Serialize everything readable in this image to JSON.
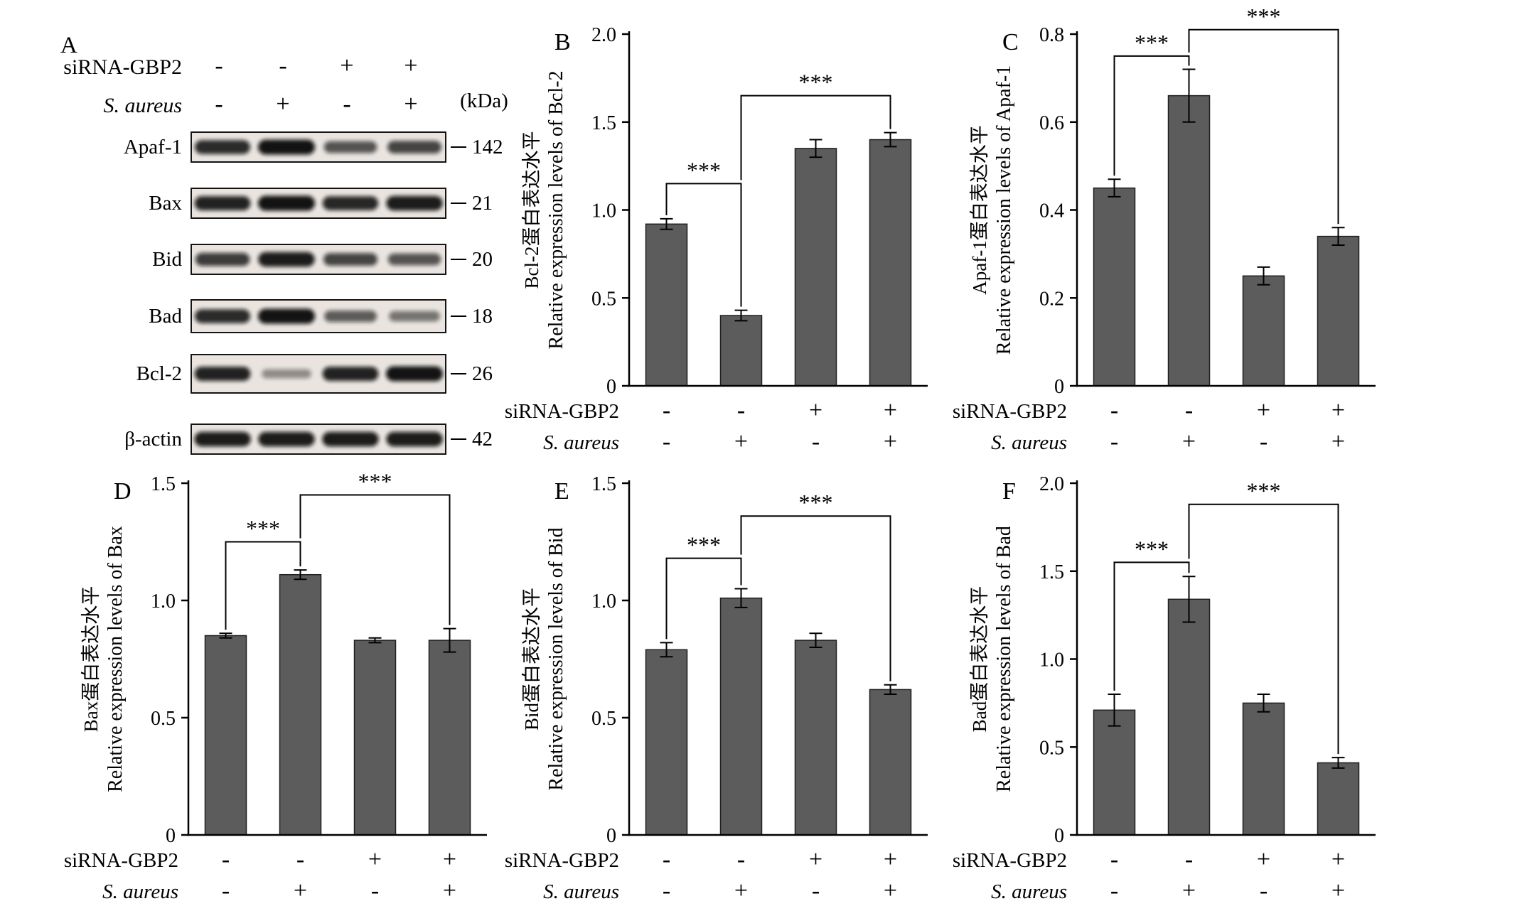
{
  "figure": {
    "background": "#ffffff"
  },
  "style": {
    "bar_color": "#5c5c5c",
    "bar_edge": "#1f1f1f",
    "axis_color": "#000000"
  },
  "panel_a": {
    "label": "A",
    "kda_header": "(kDa)",
    "condition_rows": [
      {
        "label": "siRNA-GBP2",
        "italic": false,
        "values": [
          "-",
          "-",
          "+",
          "+"
        ]
      },
      {
        "label": "S. aureus",
        "italic": true,
        "values": [
          "-",
          "+",
          "-",
          "+"
        ]
      }
    ],
    "blot_rows": [
      {
        "protein": "Apaf-1",
        "kda": "142",
        "bands": [
          0.85,
          1.0,
          0.6,
          0.7
        ]
      },
      {
        "protein": "Bax",
        "kda": "21",
        "bands": [
          0.9,
          1.0,
          0.88,
          0.95
        ]
      },
      {
        "protein": "Bid",
        "kda": "20",
        "bands": [
          0.75,
          0.95,
          0.7,
          0.6
        ]
      },
      {
        "protein": "Bad",
        "kda": "18",
        "bands": [
          0.85,
          1.0,
          0.55,
          0.4
        ]
      },
      {
        "protein": "Bcl-2",
        "kda": "26",
        "bands": [
          0.9,
          0.25,
          0.9,
          1.0
        ]
      },
      {
        "protein": "β-actin",
        "kda": "42",
        "bands": [
          0.95,
          0.95,
          0.95,
          0.95
        ]
      }
    ]
  },
  "axis_rows": [
    {
      "label": "siRNA-GBP2",
      "italic": false,
      "values": [
        "-",
        "-",
        "+",
        "+"
      ]
    },
    {
      "label": "S. aureus",
      "italic": true,
      "values": [
        "-",
        "+",
        "-",
        "+"
      ]
    }
  ],
  "chart_data": [
    {
      "type": "bar",
      "panel": "B",
      "ylabel_cn": "Bcl-2蛋白表达水平",
      "ylabel_en": "Relative expression levels of Bcl-2",
      "ylim": [
        0,
        2.0
      ],
      "yticks": [
        "0",
        "0.5",
        "1.0",
        "1.5",
        "2.0"
      ],
      "values": [
        0.92,
        0.4,
        1.35,
        1.4
      ],
      "errors": [
        0.03,
        0.03,
        0.05,
        0.04
      ],
      "significance": [
        {
          "from": 0,
          "to": 1,
          "label": "***",
          "height": 1.15
        },
        {
          "from": 1,
          "to": 3,
          "label": "***",
          "height": 1.65
        }
      ]
    },
    {
      "type": "bar",
      "panel": "C",
      "ylabel_cn": "Apaf-1蛋白表达水平",
      "ylabel_en": "Relative expression levels of Apaf-1",
      "ylim": [
        0,
        0.8
      ],
      "yticks": [
        "0",
        "0.2",
        "0.4",
        "0.6",
        "0.8"
      ],
      "values": [
        0.45,
        0.66,
        0.25,
        0.34
      ],
      "errors": [
        0.02,
        0.06,
        0.02,
        0.02
      ],
      "significance": [
        {
          "from": 0,
          "to": 1,
          "label": "***",
          "height": 0.75
        },
        {
          "from": 1,
          "to": 3,
          "label": "***",
          "height": 0.81
        }
      ]
    },
    {
      "type": "bar",
      "panel": "D",
      "ylabel_cn": "Bax蛋白表达水平",
      "ylabel_en": "Relative expression levels of Bax",
      "ylim": [
        0,
        1.5
      ],
      "yticks": [
        "0",
        "0.5",
        "1.0",
        "1.5"
      ],
      "values": [
        0.85,
        1.11,
        0.83,
        0.83
      ],
      "errors": [
        0.01,
        0.02,
        0.01,
        0.05
      ],
      "significance": [
        {
          "from": 0,
          "to": 1,
          "label": "***",
          "height": 1.25
        },
        {
          "from": 1,
          "to": 3,
          "label": "***",
          "height": 1.45
        }
      ]
    },
    {
      "type": "bar",
      "panel": "E",
      "ylabel_cn": "Bid蛋白表达水平",
      "ylabel_en": "Relative expression levels of Bid",
      "ylim": [
        0,
        1.5
      ],
      "yticks": [
        "0",
        "0.5",
        "1.0",
        "1.5"
      ],
      "values": [
        0.79,
        1.01,
        0.83,
        0.62
      ],
      "errors": [
        0.03,
        0.04,
        0.03,
        0.02
      ],
      "significance": [
        {
          "from": 0,
          "to": 1,
          "label": "***",
          "height": 1.18
        },
        {
          "from": 1,
          "to": 3,
          "label": "***",
          "height": 1.36
        }
      ]
    },
    {
      "type": "bar",
      "panel": "F",
      "ylabel_cn": "Bad蛋白表达水平",
      "ylabel_en": "Relative expression levels of Bad",
      "ylim": [
        0,
        2.0
      ],
      "yticks": [
        "0",
        "0.5",
        "1.0",
        "1.5",
        "2.0"
      ],
      "values": [
        0.71,
        1.34,
        0.75,
        0.41
      ],
      "errors": [
        0.09,
        0.13,
        0.05,
        0.03
      ],
      "significance": [
        {
          "from": 0,
          "to": 1,
          "label": "***",
          "height": 1.55
        },
        {
          "from": 1,
          "to": 3,
          "label": "***",
          "height": 1.88
        }
      ]
    }
  ]
}
